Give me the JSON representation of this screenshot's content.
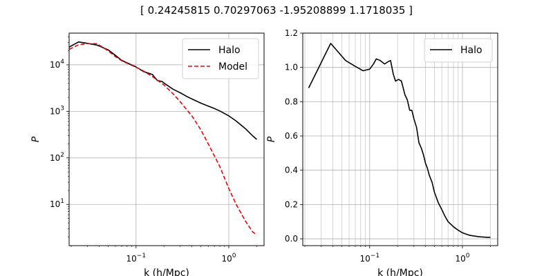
{
  "figure_title": "[ 0.24245815  0.70297063 -1.95208899  1.1718035 ]",
  "chart_data": [
    {
      "type": "line",
      "panel": "left",
      "xlabel": "k (h/Mpc)",
      "ylabel": "P",
      "xscale": "log",
      "yscale": "log",
      "xlim": [
        0.019,
        2.4
      ],
      "ylim": [
        1.3,
        48000
      ],
      "grid": true,
      "legend_position": "top-right",
      "x_ticks": [
        {
          "v": 0.1,
          "base": "10",
          "exp": "−1"
        },
        {
          "v": 1,
          "base": "10",
          "exp": "0"
        }
      ],
      "y_ticks": [
        {
          "v": 10,
          "base": "10",
          "exp": "1"
        },
        {
          "v": 100,
          "base": "10",
          "exp": "2"
        },
        {
          "v": 1000,
          "base": "10",
          "exp": "3"
        },
        {
          "v": 10000,
          "base": "10",
          "exp": "4"
        }
      ],
      "series": [
        {
          "name": "Halo",
          "color": "#000000",
          "dash": "solid",
          "x": [
            0.019,
            0.024,
            0.03,
            0.038,
            0.05,
            0.06,
            0.07,
            0.08,
            0.1,
            0.12,
            0.15,
            0.17,
            0.19,
            0.21,
            0.25,
            0.3,
            0.35,
            0.4,
            0.5,
            0.6,
            0.7,
            0.8,
            1.0,
            1.2,
            1.5,
            1.8,
            2.0
          ],
          "y": [
            24000,
            31000,
            29000,
            26500,
            21000,
            16000,
            12500,
            11000,
            9000,
            7200,
            6200,
            4600,
            4400,
            3800,
            3000,
            2500,
            2100,
            1850,
            1500,
            1300,
            1150,
            1020,
            800,
            620,
            430,
            300,
            250
          ]
        },
        {
          "name": "Model",
          "color": "#e8000b",
          "dash": "dashed",
          "x": [
            0.019,
            0.024,
            0.03,
            0.038,
            0.05,
            0.06,
            0.07,
            0.08,
            0.1,
            0.12,
            0.15,
            0.2,
            0.25,
            0.3,
            0.35,
            0.4,
            0.5,
            0.6,
            0.7,
            0.8,
            1.0,
            1.2,
            1.5,
            1.8,
            2.0
          ],
          "y": [
            21500,
            27000,
            28500,
            28500,
            20000,
            15000,
            12300,
            10800,
            8900,
            7400,
            5600,
            3700,
            2400,
            1600,
            1100,
            800,
            400,
            200,
            110,
            65,
            22,
            10,
            4.5,
            2.6,
            2.2
          ]
        }
      ]
    },
    {
      "type": "line",
      "panel": "right",
      "xlabel": "k (h/Mpc)",
      "ylabel": "P",
      "xscale": "log",
      "yscale": "linear",
      "xlim": [
        0.019,
        2.4
      ],
      "ylim": [
        -0.04,
        1.2
      ],
      "grid": true,
      "legend_position": "top-right",
      "x_ticks": [
        {
          "v": 0.1,
          "base": "10",
          "exp": "−1"
        },
        {
          "v": 1,
          "base": "10",
          "exp": "0"
        }
      ],
      "y_ticks": [
        {
          "v": 0.0,
          "label": "0.0"
        },
        {
          "v": 0.2,
          "label": "0.2"
        },
        {
          "v": 0.4,
          "label": "0.4"
        },
        {
          "v": 0.6,
          "label": "0.6"
        },
        {
          "v": 0.8,
          "label": "0.8"
        },
        {
          "v": 1.0,
          "label": "1.0"
        },
        {
          "v": 1.2,
          "label": "1.2"
        }
      ],
      "series": [
        {
          "name": "Halo",
          "color": "#000000",
          "dash": "solid",
          "x": [
            0.022,
            0.038,
            0.055,
            0.068,
            0.085,
            0.092,
            0.1,
            0.11,
            0.118,
            0.13,
            0.145,
            0.16,
            0.168,
            0.18,
            0.19,
            0.205,
            0.22,
            0.24,
            0.255,
            0.27,
            0.285,
            0.3,
            0.32,
            0.34,
            0.36,
            0.38,
            0.4,
            0.42,
            0.44,
            0.47,
            0.5,
            0.55,
            0.6,
            0.65,
            0.7,
            0.8,
            0.9,
            1.0,
            1.2,
            1.5,
            1.8,
            2.0
          ],
          "y": [
            0.88,
            1.14,
            1.04,
            1.01,
            0.98,
            0.985,
            0.99,
            1.02,
            1.05,
            1.04,
            1.02,
            1.035,
            1.04,
            0.96,
            0.92,
            0.93,
            0.92,
            0.84,
            0.81,
            0.75,
            0.75,
            0.7,
            0.65,
            0.56,
            0.53,
            0.49,
            0.44,
            0.41,
            0.37,
            0.33,
            0.27,
            0.21,
            0.17,
            0.13,
            0.1,
            0.07,
            0.05,
            0.035,
            0.02,
            0.012,
            0.009,
            0.008
          ]
        }
      ]
    }
  ]
}
